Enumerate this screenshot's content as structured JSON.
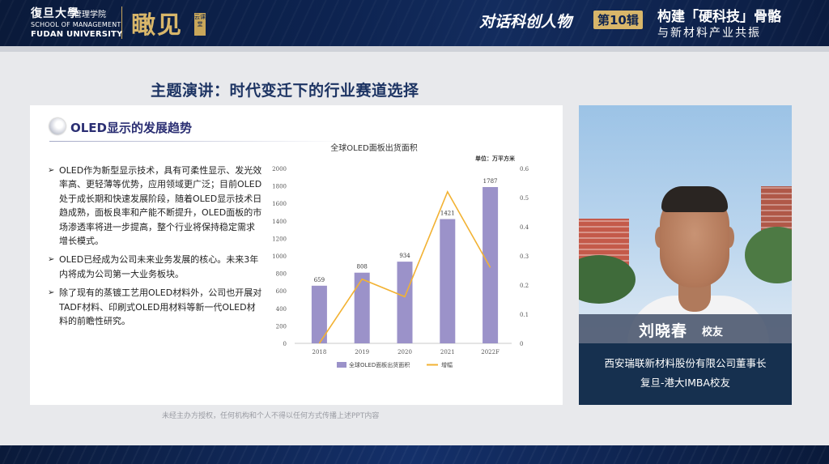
{
  "header": {
    "university_cn": "復旦大學",
    "school_cn": "管理学院",
    "school_en": "SCHOOL OF MANAGEMENT",
    "university_en": "FUDAN UNIVERSITY",
    "program": "瞰见",
    "program_badge": "云课堂",
    "series": "对话科创人物",
    "episode": "第10辑",
    "theme_line1": "构建「硬科技」骨骼",
    "theme_line2": "与新材料产业共振"
  },
  "slide": {
    "heading": "主题演讲：时代变迁下的行业赛道选择",
    "title": "OLED显示的发展趋势",
    "bullets": [
      "OLED作为新型显示技术，具有可柔性显示、发光效率高、更轻薄等优势，应用领域更广泛；目前OLED处于成长期和快速发展阶段，随着OLED显示技术日趋成熟，面板良率和产能不断提升，OLED面板的市场渗透率将进一步提高，整个行业将保持稳定需求增长模式。",
      "OLED已经成为公司未来业务发展的核心。未来3年内将成为公司第一大业务板块。",
      "除了现有的蒸镀工艺用OLED材料外，公司也开展对TADF材料、印刷式OLED用材料等新一代OLED材料的前瞻性研究。"
    ]
  },
  "chart_data": {
    "type": "bar",
    "title": "全球OLED面板出货面积",
    "unit_label": "单位：万平方米",
    "categories": [
      "2018",
      "2019",
      "2020",
      "2021",
      "2022F"
    ],
    "series": [
      {
        "name": "全球OLED面板出货面积",
        "type": "bar",
        "axis": "left",
        "values": [
          659,
          808,
          934,
          1421,
          1787
        ],
        "color": "#9b92c9"
      },
      {
        "name": "增幅",
        "type": "line",
        "axis": "right",
        "values": [
          0.0,
          0.22,
          0.16,
          0.52,
          0.26
        ],
        "color": "#f2b233"
      }
    ],
    "y_left": {
      "range": [
        0,
        2000
      ],
      "ticks": [
        0,
        200,
        400,
        600,
        800,
        1000,
        1200,
        1400,
        1600,
        1800,
        2000
      ]
    },
    "y_right": {
      "range": [
        0,
        0.6
      ],
      "ticks": [
        0,
        0.1,
        0.2,
        0.3,
        0.4,
        0.5,
        0.6
      ]
    },
    "grid": false,
    "legend": "bottom"
  },
  "speaker": {
    "name": "刘晓春",
    "tag": "校友",
    "role_line1": "西安瑞联新材料股份有限公司董事长",
    "role_line2": "复旦-港大IMBA校友"
  },
  "footer": {
    "disclaimer": "未经主办方授权，任何机构和个人不得以任何方式传播上述PPT内容"
  },
  "colors": {
    "navy": "#0d2350",
    "gold": "#d8b66a",
    "bar": "#9b92c9",
    "line": "#f2b233",
    "heading": "#1d3463"
  }
}
